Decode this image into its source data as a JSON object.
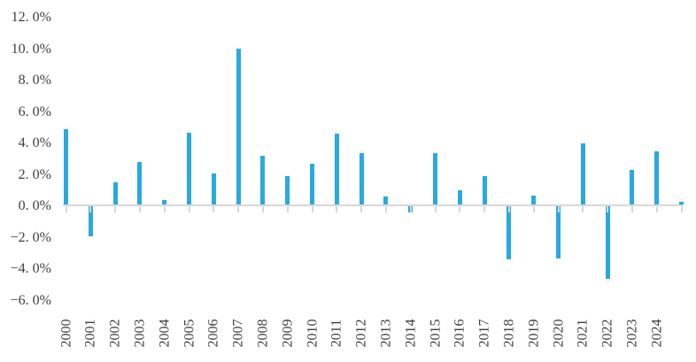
{
  "chart_data": {
    "type": "bar",
    "title": "",
    "xlabel": "",
    "ylabel": "",
    "legend": false,
    "grid": false,
    "categories": [
      "2000",
      "2001",
      "2002",
      "2003",
      "2004",
      "2005",
      "2006",
      "2007",
      "2008",
      "2009",
      "2010",
      "2011",
      "2012",
      "2013",
      "2014",
      "2015",
      "2016",
      "2017",
      "2018",
      "2019",
      "2020",
      "2021",
      "2022",
      "2023",
      "2024",
      ""
    ],
    "values": [
      4.9,
      -1.9,
      1.5,
      2.8,
      0.4,
      4.7,
      2.1,
      10.0,
      3.2,
      1.9,
      2.7,
      4.6,
      3.4,
      0.6,
      -0.4,
      3.4,
      1.0,
      1.9,
      -3.4,
      0.7,
      -3.3,
      4.0,
      -4.6,
      2.3,
      3.5,
      0.3
    ],
    "value_unit": "percent",
    "ylim": [
      -6,
      12
    ],
    "y_ticks": [
      {
        "label": "12. 0%",
        "value": 12
      },
      {
        "label": "10. 0%",
        "value": 10
      },
      {
        "label": "8. 0%",
        "value": 8
      },
      {
        "label": "6. 0%",
        "value": 6
      },
      {
        "label": "4. 0%",
        "value": 4
      },
      {
        "label": "2. 0%",
        "value": 2
      },
      {
        "label": "0. 0%",
        "value": 0
      },
      {
        "label": "−2. 0%",
        "value": -2
      },
      {
        "label": "−4. 0%",
        "value": -4
      },
      {
        "label": "−6. 0%",
        "value": -6
      }
    ],
    "colors": {
      "bar": "#29A9E0",
      "axis": "#D8D8D8",
      "text": "#3F3F3F",
      "background": "#FFFFFF"
    }
  }
}
